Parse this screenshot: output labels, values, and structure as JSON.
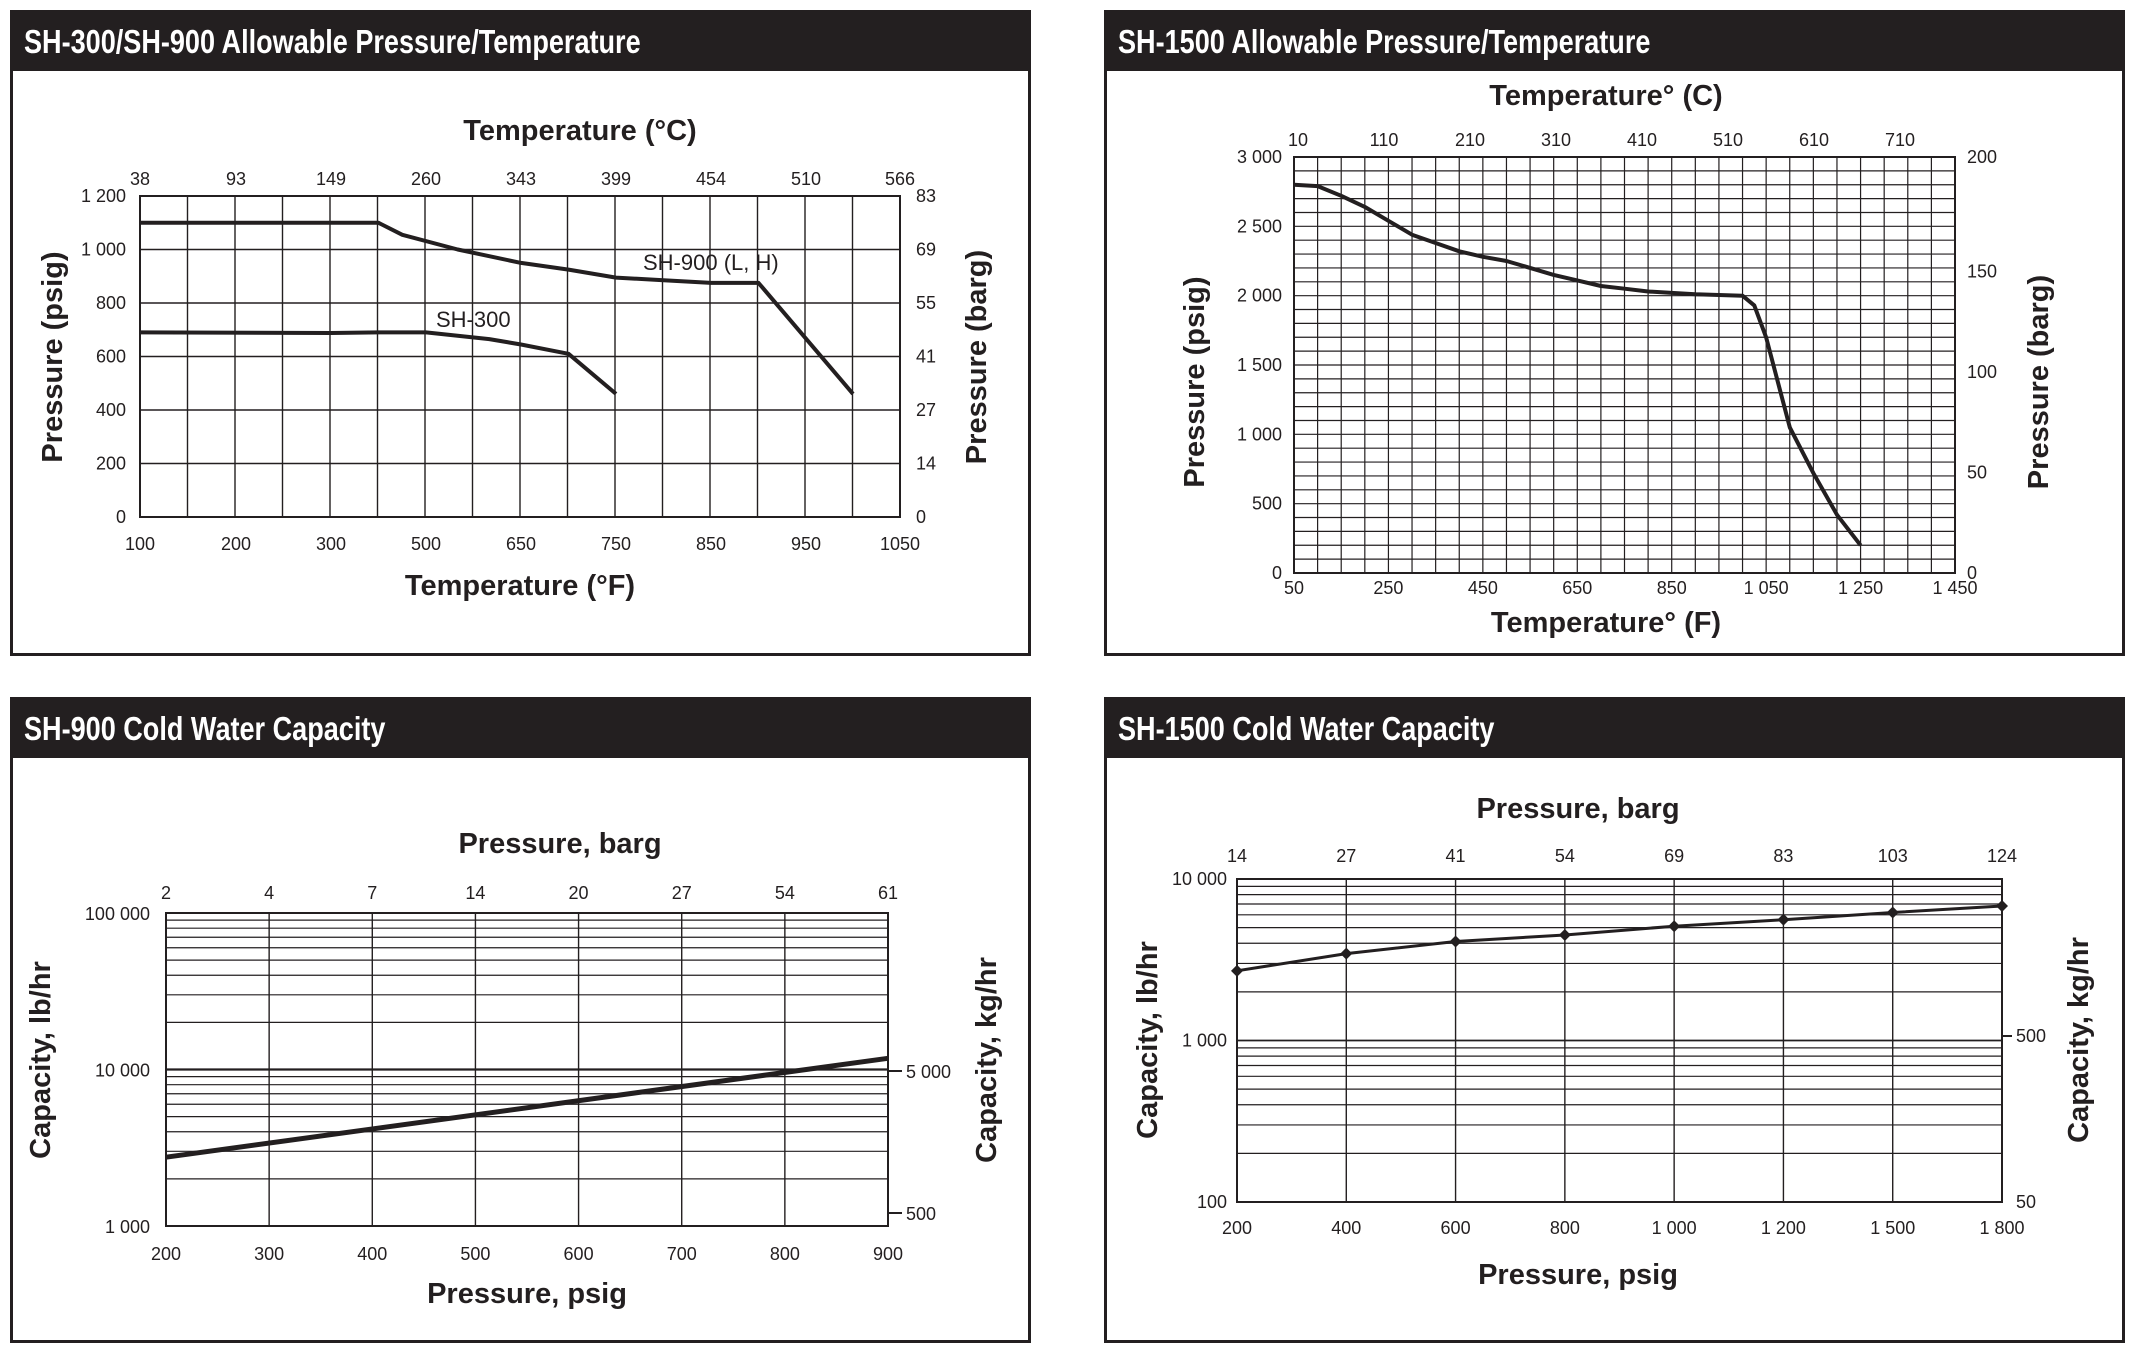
{
  "panels": [
    {
      "title": "SH-300/SH-900 Allowable Pressure/Temperature"
    },
    {
      "title": "SH-1500 Allowable Pressure/Temperature"
    },
    {
      "title": "SH-900 Cold Water Capacity"
    },
    {
      "title": "SH-1500 Cold Water Capacity"
    }
  ],
  "chart_data": [
    {
      "type": "line",
      "title": "SH-300/SH-900 Allowable Pressure/Temperature",
      "xlabel": "Temperature (°F)",
      "ylabel": "Pressure (psig)",
      "x2label": "Temperature (°C)",
      "y2label": "Pressure (barg)",
      "xlim": [
        100,
        1050
      ],
      "ylim": [
        0,
        1200
      ],
      "grid": true,
      "x_ticks": [
        "100",
        "200",
        "300",
        "500",
        "650",
        "750",
        "850",
        "950",
        "1050"
      ],
      "y_ticks": [
        "0",
        "200",
        "400",
        "600",
        "800",
        "1 000",
        "1 200"
      ],
      "x2_ticks": [
        "38",
        "93",
        "149",
        "260",
        "343",
        "399",
        "454",
        "510",
        "566"
      ],
      "y2_ticks": [
        "0",
        "14",
        "27",
        "41",
        "55",
        "69",
        "83"
      ],
      "series": [
        {
          "name": "SH-900 (L, H)",
          "x": [
            100,
            400,
            450,
            550,
            600,
            650,
            700,
            750,
            800,
            850,
            900,
            1000
          ],
          "y": [
            1100,
            1100,
            1055,
            1000,
            975,
            950,
            925,
            895,
            885,
            875,
            875,
            460
          ]
        },
        {
          "name": "SH-300",
          "x": [
            100,
            300,
            400,
            500,
            600,
            650,
            700,
            750
          ],
          "y": [
            690,
            688,
            690,
            690,
            665,
            645,
            610,
            460
          ]
        }
      ]
    },
    {
      "type": "line",
      "title": "SH-1500 Allowable Pressure/Temperature",
      "xlabel": "Temperature° (F)",
      "ylabel": "Pressure (psig)",
      "x2label": "Temperature° (C)",
      "y2label": "Pressure (barg)",
      "xlim": [
        50,
        1450
      ],
      "ylim": [
        0,
        3000
      ],
      "grid": true,
      "x_ticks": [
        "50",
        "250",
        "450",
        "650",
        "850",
        "1 050",
        "1 250",
        "1 450"
      ],
      "y_ticks": [
        "0",
        "500",
        "1 000",
        "1 500",
        "2 000",
        "2 500",
        "3 000"
      ],
      "x2_ticks": [
        "10",
        "110",
        "210",
        "310",
        "410",
        "510",
        "610",
        "710"
      ],
      "y2_ticks": [
        "0",
        "50",
        "100",
        "150",
        "200"
      ],
      "series": [
        {
          "x": [
            50,
            100,
            150,
            200,
            250,
            300,
            350,
            400,
            450,
            500,
            550,
            600,
            650,
            700,
            750,
            800,
            850,
            900,
            950,
            1000,
            1025,
            1050,
            1100,
            1150,
            1200,
            1250
          ],
          "y": [
            2800,
            2790,
            2720,
            2640,
            2540,
            2440,
            2380,
            2320,
            2280,
            2250,
            2200,
            2150,
            2110,
            2070,
            2050,
            2030,
            2020,
            2010,
            2005,
            2000,
            1930,
            1700,
            1050,
            720,
            420,
            200
          ]
        }
      ]
    },
    {
      "type": "line",
      "title": "SH-900 Cold Water Capacity",
      "xlabel": "Pressure, psig",
      "ylabel": "Capacity, lb/hr",
      "x2label": "Pressure, barg",
      "y2label": "Capacity, kg/hr",
      "xlim": [
        200,
        900
      ],
      "ylim": [
        1000,
        100000
      ],
      "yscale": "log",
      "grid": true,
      "x_ticks": [
        "200",
        "300",
        "400",
        "500",
        "600",
        "700",
        "800",
        "900"
      ],
      "y_ticks": [
        "1 000",
        "10 000",
        "100 000"
      ],
      "x2_ticks": [
        "2",
        "4",
        "7",
        "14",
        "20",
        "27",
        "54",
        "61"
      ],
      "y2_ticks": [
        "500",
        "5 000"
      ],
      "series": [
        {
          "x": [
            200,
            900
          ],
          "y": [
            2750,
            11800
          ]
        }
      ]
    },
    {
      "type": "line",
      "title": "SH-1500 Cold Water Capacity",
      "xlabel": "Pressure, psig",
      "ylabel": "Capacity, lb/hr",
      "x2label": "Pressure, barg",
      "y2label": "Capacity, kg/hr",
      "ylim": [
        100,
        10000
      ],
      "yscale": "log",
      "grid": true,
      "x_ticks": [
        "200",
        "400",
        "600",
        "800",
        "1 000",
        "1 200",
        "1 500",
        "1 800"
      ],
      "y_ticks": [
        "100",
        "1 000",
        "10 000"
      ],
      "x2_ticks": [
        "14",
        "27",
        "41",
        "54",
        "69",
        "83",
        "103",
        "124"
      ],
      "y2_ticks": [
        "50",
        "500"
      ],
      "series": [
        {
          "x": [
            "200",
            "400",
            "600",
            "800",
            "1 000",
            "1 200",
            "1 500",
            "1 800"
          ],
          "y": [
            2700,
            3450,
            4100,
            4500,
            5100,
            5600,
            6200,
            6800
          ]
        }
      ]
    }
  ]
}
